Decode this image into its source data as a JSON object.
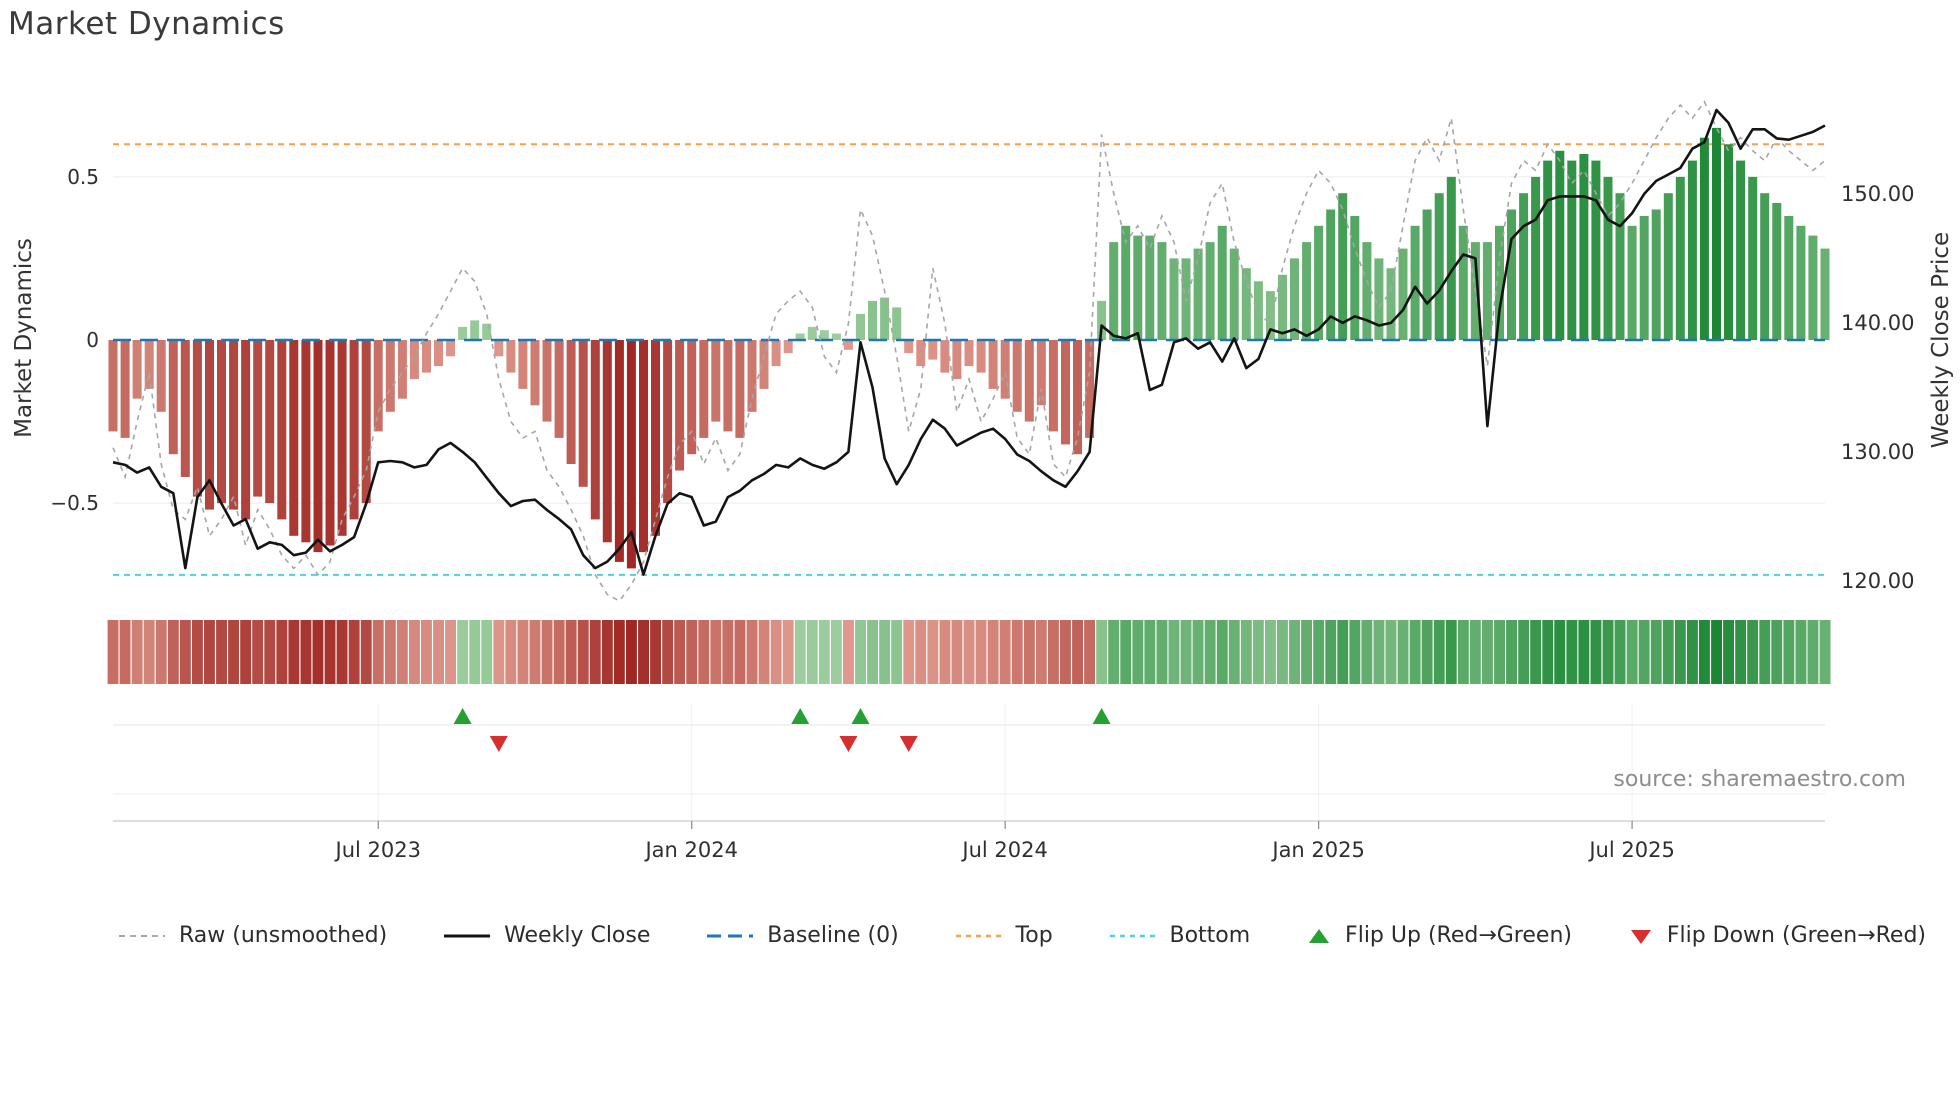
{
  "title": "Market Dynamics",
  "source": "source: sharemaestro.com",
  "axes": {
    "left_label": "Market Dynamics",
    "right_label": "Weekly Close Price",
    "left_ticks": [
      {
        "v": 0.5,
        "label": "0.5"
      },
      {
        "v": 0,
        "label": "0"
      },
      {
        "v": -0.5,
        "label": "−0.5"
      }
    ],
    "right_ticks": [
      {
        "v": 150,
        "label": "150.00"
      },
      {
        "v": 140,
        "label": "140.00"
      },
      {
        "v": 130,
        "label": "130.00"
      },
      {
        "v": 120,
        "label": "120.00"
      }
    ],
    "x_ticks": [
      {
        "i": 22,
        "label": "Jul 2023"
      },
      {
        "i": 48,
        "label": "Jan 2024"
      },
      {
        "i": 74,
        "label": "Jul 2024"
      },
      {
        "i": 100,
        "label": "Jan 2025"
      },
      {
        "i": 126,
        "label": "Jul 2025"
      }
    ]
  },
  "colors": {
    "bar_green_light": "#c9e5c2",
    "bar_green_dark": "#15842f",
    "bar_red_light": "#f4bfb0",
    "bar_red_dark": "#9e2420",
    "weekly_close": "#141414",
    "raw_line": "#a6a6a6",
    "baseline": "#1f77b4",
    "top_line": "#f0a04e",
    "bottom_line": "#4dd1e0",
    "flip_up": "#26a032",
    "flip_down": "#d62f2f",
    "grid": "#ececec",
    "tick_text": "#2f2f2f"
  },
  "legend": [
    {
      "label": "Raw (unsmoothed)"
    },
    {
      "label": "Weekly Close"
    },
    {
      "label": "Baseline (0)"
    },
    {
      "label": "Top"
    },
    {
      "label": "Bottom"
    },
    {
      "label": "Flip Up (Red→Green)"
    },
    {
      "label": "Flip Down (Green→Red)"
    }
  ],
  "chart_data": {
    "type": "bar",
    "x_unit": "week",
    "title": "Market Dynamics",
    "ylabel_left": "Market Dynamics",
    "ylabel_right": "Weekly Close Price",
    "osc_ylim": [
      -0.8,
      0.8
    ],
    "price_ylim": [
      118.45,
      158.9
    ],
    "baseline": 0,
    "top_threshold": 0.6,
    "bottom_threshold": -0.72,
    "legend_position": "bottom",
    "grid": true,
    "smoothed": [
      -0.28,
      -0.3,
      -0.18,
      -0.15,
      -0.22,
      -0.35,
      -0.42,
      -0.48,
      -0.52,
      -0.5,
      -0.52,
      -0.55,
      -0.48,
      -0.5,
      -0.55,
      -0.6,
      -0.62,
      -0.65,
      -0.63,
      -0.6,
      -0.55,
      -0.5,
      -0.28,
      -0.22,
      -0.18,
      -0.12,
      -0.1,
      -0.08,
      -0.05,
      0.04,
      0.06,
      0.05,
      -0.05,
      -0.1,
      -0.15,
      -0.2,
      -0.25,
      -0.3,
      -0.38,
      -0.45,
      -0.55,
      -0.62,
      -0.68,
      -0.7,
      -0.65,
      -0.6,
      -0.5,
      -0.4,
      -0.35,
      -0.3,
      -0.25,
      -0.28,
      -0.3,
      -0.22,
      -0.15,
      -0.08,
      -0.04,
      0.02,
      0.04,
      0.03,
      0.02,
      -0.03,
      0.08,
      0.12,
      0.13,
      0.1,
      -0.04,
      -0.08,
      -0.06,
      -0.1,
      -0.12,
      -0.08,
      -0.1,
      -0.15,
      -0.18,
      -0.22,
      -0.25,
      -0.2,
      -0.28,
      -0.32,
      -0.35,
      -0.3,
      0.12,
      0.3,
      0.35,
      0.32,
      0.32,
      0.3,
      0.25,
      0.25,
      0.28,
      0.3,
      0.35,
      0.28,
      0.22,
      0.18,
      0.15,
      0.2,
      0.25,
      0.3,
      0.35,
      0.4,
      0.45,
      0.38,
      0.3,
      0.25,
      0.22,
      0.28,
      0.35,
      0.4,
      0.45,
      0.5,
      0.35,
      0.3,
      0.3,
      0.35,
      0.4,
      0.45,
      0.5,
      0.55,
      0.58,
      0.55,
      0.57,
      0.55,
      0.5,
      0.45,
      0.35,
      0.38,
      0.4,
      0.45,
      0.5,
      0.55,
      0.62,
      0.65,
      0.6,
      0.55,
      0.5,
      0.45,
      0.42,
      0.38,
      0.35,
      0.32,
      0.28
    ],
    "raw": [
      -0.33,
      -0.42,
      -0.25,
      -0.1,
      -0.38,
      -0.52,
      -0.55,
      -0.45,
      -0.6,
      -0.55,
      -0.48,
      -0.63,
      -0.52,
      -0.58,
      -0.66,
      -0.7,
      -0.66,
      -0.72,
      -0.68,
      -0.55,
      -0.48,
      -0.4,
      -0.22,
      -0.15,
      -0.1,
      -0.05,
      0.02,
      0.08,
      0.15,
      0.22,
      0.18,
      0.08,
      -0.12,
      -0.25,
      -0.3,
      -0.28,
      -0.4,
      -0.45,
      -0.52,
      -0.6,
      -0.72,
      -0.78,
      -0.8,
      -0.75,
      -0.68,
      -0.55,
      -0.42,
      -0.32,
      -0.28,
      -0.38,
      -0.3,
      -0.4,
      -0.35,
      -0.18,
      -0.05,
      0.08,
      0.12,
      0.15,
      0.1,
      -0.05,
      -0.1,
      0.05,
      0.4,
      0.32,
      0.15,
      -0.05,
      -0.28,
      -0.15,
      0.22,
      0.05,
      -0.22,
      -0.12,
      -0.25,
      -0.18,
      -0.1,
      -0.3,
      -0.35,
      -0.15,
      -0.38,
      -0.42,
      -0.3,
      -0.1,
      0.63,
      0.45,
      0.3,
      0.35,
      0.28,
      0.38,
      0.3,
      0.12,
      0.25,
      0.42,
      0.48,
      0.3,
      0.18,
      0.08,
      0.05,
      0.22,
      0.35,
      0.45,
      0.52,
      0.48,
      0.4,
      0.28,
      0.18,
      0.1,
      0.15,
      0.35,
      0.55,
      0.62,
      0.55,
      0.68,
      0.4,
      0.15,
      -0.08,
      0.25,
      0.48,
      0.55,
      0.52,
      0.6,
      0.55,
      0.48,
      0.52,
      0.45,
      0.38,
      0.42,
      0.48,
      0.55,
      0.62,
      0.68,
      0.72,
      0.68,
      0.73,
      0.65,
      0.58,
      0.62,
      0.58,
      0.55,
      0.62,
      0.58,
      0.55,
      0.52,
      0.55
    ],
    "price": [
      129.2,
      129.0,
      128.4,
      128.8,
      127.3,
      126.8,
      121.0,
      126.5,
      127.8,
      126.0,
      124.3,
      124.8,
      122.5,
      123.0,
      122.8,
      122.0,
      122.2,
      123.2,
      122.3,
      122.8,
      123.4,
      126.0,
      129.2,
      129.3,
      129.2,
      128.8,
      129.0,
      130.2,
      130.7,
      130.0,
      129.2,
      128.0,
      126.8,
      125.8,
      126.2,
      126.3,
      125.5,
      124.8,
      124.0,
      122.0,
      121.0,
      121.5,
      122.5,
      123.8,
      120.5,
      123.5,
      126.0,
      126.8,
      126.5,
      124.3,
      124.6,
      126.5,
      127.0,
      127.8,
      128.3,
      129.0,
      128.8,
      129.5,
      129.0,
      128.7,
      129.2,
      130.0,
      138.5,
      135.0,
      129.5,
      127.5,
      129.0,
      131.0,
      132.5,
      131.8,
      130.5,
      131.0,
      131.5,
      131.8,
      131.0,
      129.8,
      129.3,
      128.5,
      127.8,
      127.3,
      128.5,
      130.0,
      139.8,
      139.0,
      138.8,
      139.2,
      134.8,
      135.2,
      138.5,
      138.8,
      138.0,
      138.5,
      137.0,
      138.8,
      136.5,
      137.2,
      139.5,
      139.2,
      139.5,
      139.0,
      139.5,
      140.5,
      140.0,
      140.5,
      140.2,
      139.8,
      140.0,
      141.0,
      142.8,
      141.5,
      142.5,
      144.0,
      145.3,
      145.0,
      132.0,
      141.0,
      146.5,
      147.5,
      148.0,
      149.5,
      149.8,
      149.8,
      149.8,
      149.5,
      148.0,
      147.5,
      148.5,
      150.0,
      151.0,
      151.5,
      152.0,
      153.5,
      154.0,
      156.5,
      155.5,
      153.5,
      155.0,
      155.0,
      154.3,
      154.2,
      154.5,
      154.8,
      155.3
    ],
    "flip_up_idx": [
      29,
      57,
      62,
      82
    ],
    "flip_down_idx": [
      32,
      61,
      66
    ]
  }
}
